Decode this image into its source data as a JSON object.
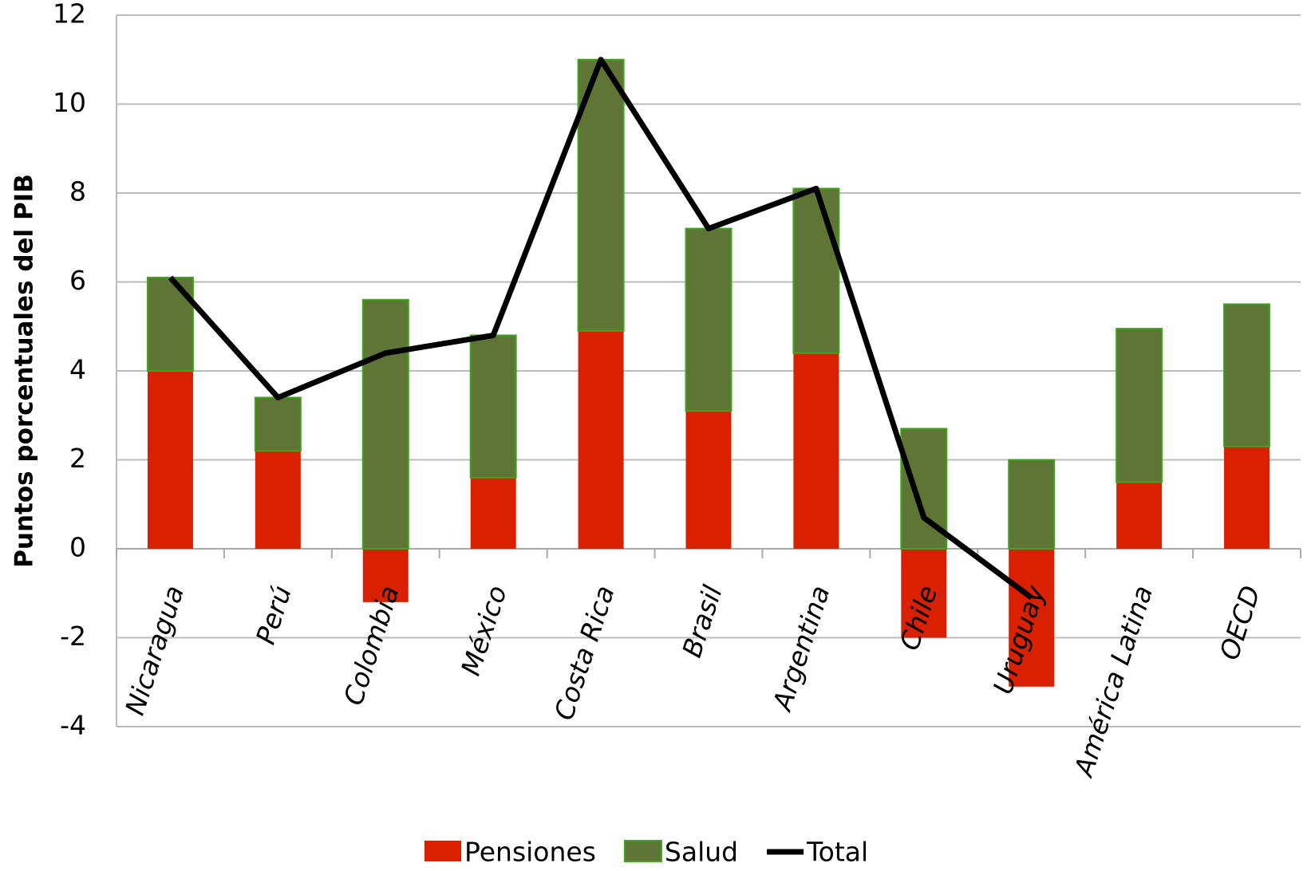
{
  "chart_data": {
    "type": "bar",
    "y_label": "Puntos porcentuales del PIB",
    "categories": [
      "Nicaragua",
      "Perú",
      "Colombia",
      "México",
      "Costa Rica",
      "Brasil",
      "Argentina",
      "Chile",
      "Uruguay",
      "América Latina",
      "OECD"
    ],
    "series": [
      {
        "name": "Pensiones",
        "color": "#d92000",
        "values": [
          4.0,
          2.2,
          -1.2,
          1.6,
          4.9,
          3.1,
          4.4,
          -2.0,
          -3.1,
          1.5,
          2.3
        ]
      },
      {
        "name": "Salud",
        "color": "#5e7536",
        "values": [
          2.1,
          1.2,
          5.6,
          3.2,
          6.1,
          4.1,
          3.7,
          2.7,
          2.0,
          3.45,
          3.2
        ]
      },
      {
        "name": "Total",
        "type": "line",
        "color": "#000000",
        "values": [
          6.1,
          3.4,
          4.4,
          4.8,
          11.0,
          7.2,
          8.1,
          0.7,
          -1.1,
          null,
          null
        ]
      }
    ],
    "stacked": true,
    "ylim": [
      -4,
      12
    ],
    "yticks": [
      -4,
      -2,
      0,
      2,
      4,
      6,
      8,
      10,
      12
    ],
    "grid": true,
    "legend": "bottom"
  }
}
